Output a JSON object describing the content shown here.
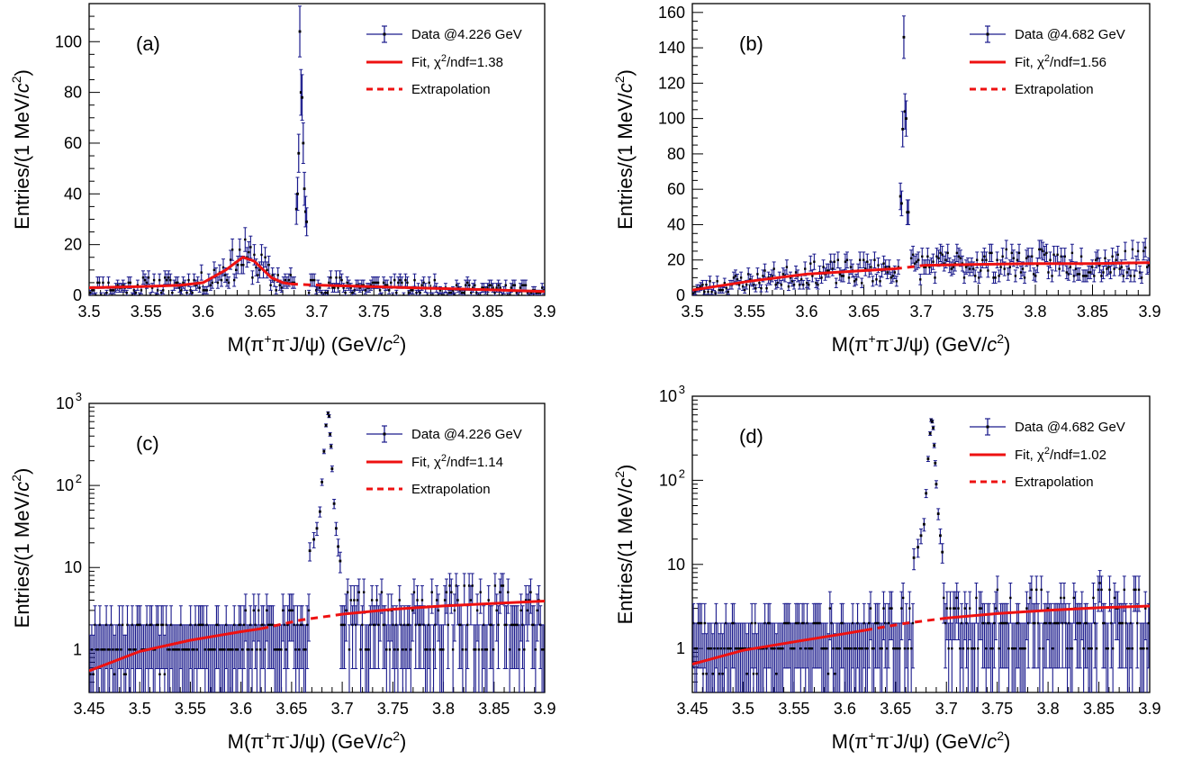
{
  "colors": {
    "data": "#1a1a8c",
    "fit": "#ee1111",
    "axis": "#000000"
  },
  "legend_symbols": {
    "chi2": "χ",
    "sup2": "2"
  },
  "chart_data": [
    {
      "type": "scatter",
      "panel_label": "(a)",
      "scale": "linear",
      "xlim": [
        3.5,
        3.9
      ],
      "ylim": [
        0,
        115
      ],
      "xticks": [
        "3.5",
        "3.55",
        "3.6",
        "3.65",
        "3.7",
        "3.75",
        "3.8",
        "3.85",
        "3.9"
      ],
      "yticks": [
        "0",
        "20",
        "40",
        "60",
        "80",
        "100"
      ],
      "ytick_values": [
        0,
        20,
        40,
        60,
        80,
        100
      ],
      "xlabel": {
        "pre": "M(",
        "pi": "π",
        "sup1": "+",
        "pi2": "π",
        "sup2": "-",
        "mid": "J/",
        "psi": "ψ",
        "post": ") (GeV/",
        "c": "c",
        "sup3": "2",
        "end": ")"
      },
      "ylabel": {
        "pre": "Entries/(1 MeV/",
        "c": "c",
        "sup": "2",
        "end": ")"
      },
      "legend": {
        "data": "Data @4.226 GeV",
        "fit_pre": "Fit, ",
        "fit_post": "/ndf=1.38",
        "extrap": "Extrapolation"
      },
      "fit": {
        "x": [
          3.5,
          3.55,
          3.58,
          3.6,
          3.62,
          3.635,
          3.645,
          3.66,
          3.67,
          3.677
        ],
        "y": [
          3,
          3.5,
          4,
          5,
          10,
          15,
          13.5,
          7,
          5,
          4.5
        ]
      },
      "extrapolation": {
        "x": [
          3.677,
          3.685,
          3.695,
          3.703
        ],
        "y": [
          4.5,
          4.3,
          4.1,
          4
        ]
      },
      "fit2": {
        "x": [
          3.703,
          3.75,
          3.8,
          3.85,
          3.9
        ],
        "y": [
          4,
          3.4,
          2.8,
          2.2,
          1.5
        ]
      },
      "peak": {
        "x": [
          3.682,
          3.683,
          3.684,
          3.685,
          3.686,
          3.687,
          3.688,
          3.689,
          3.69,
          3.691
        ],
        "y": [
          34,
          40,
          56,
          104,
          80,
          78,
          60,
          42,
          33,
          29
        ],
        "err": [
          6,
          6.5,
          7.5,
          10,
          9,
          9,
          8,
          6.5,
          6,
          5.5
        ]
      },
      "noise": {
        "seed": 11,
        "step": 0.0016,
        "err_scale": 1.0
      }
    },
    {
      "type": "scatter",
      "panel_label": "(b)",
      "scale": "linear",
      "xlim": [
        3.5,
        3.9
      ],
      "ylim": [
        0,
        165
      ],
      "xticks": [
        "3.5",
        "3.55",
        "3.6",
        "3.65",
        "3.7",
        "3.75",
        "3.8",
        "3.85",
        "3.9"
      ],
      "yticks": [
        "0",
        "20",
        "40",
        "60",
        "80",
        "100",
        "120",
        "140",
        "160"
      ],
      "ytick_values": [
        0,
        20,
        40,
        60,
        80,
        100,
        120,
        140,
        160
      ],
      "xlabel": {
        "pre": "M(",
        "pi": "π",
        "sup1": "+",
        "pi2": "π",
        "sup2": "-",
        "mid": "J/",
        "psi": "ψ",
        "post": ") (GeV/",
        "c": "c",
        "sup3": "2",
        "end": ")"
      },
      "ylabel": {
        "pre": "Entries/(1 MeV/",
        "c": "c",
        "sup": "2",
        "end": ")"
      },
      "legend": {
        "data": "Data @4.682 GeV",
        "fit_pre": "Fit, ",
        "fit_post": "/ndf=1.56",
        "extrap": "Extrapolation"
      },
      "fit": {
        "x": [
          3.5,
          3.55,
          3.6,
          3.65,
          3.677
        ],
        "y": [
          3,
          8,
          12,
          14,
          15
        ]
      },
      "extrapolation": {
        "x": [
          3.677,
          3.69,
          3.703
        ],
        "y": [
          15,
          16,
          17
        ]
      },
      "fit2": {
        "x": [
          3.703,
          3.75,
          3.8,
          3.85,
          3.9
        ],
        "y": [
          17,
          17.5,
          18,
          18,
          18.5
        ]
      },
      "peak": {
        "x": [
          3.682,
          3.683,
          3.684,
          3.685,
          3.686,
          3.687,
          3.688,
          3.689
        ],
        "y": [
          56,
          52,
          94,
          146,
          104,
          100,
          47,
          47
        ],
        "err": [
          7.5,
          7,
          10,
          12,
          10,
          10,
          7,
          7
        ]
      },
      "noise": {
        "seed": 23,
        "step": 0.0016,
        "err_scale": 1.0
      }
    },
    {
      "type": "scatter",
      "panel_label": "(c)",
      "scale": "log",
      "xlim": [
        3.45,
        3.9
      ],
      "ylim": [
        0.3,
        1000
      ],
      "xticks": [
        "3.45",
        "3.5",
        "3.55",
        "3.6",
        "3.65",
        "3.7",
        "3.75",
        "3.8",
        "3.85",
        "3.9"
      ],
      "yticks": [
        "1",
        "10",
        "10",
        "10"
      ],
      "ytick_values": [
        1,
        10,
        100,
        1000
      ],
      "ytick_exps": [
        "",
        "",
        "2",
        "3"
      ],
      "xlabel": {
        "pre": "M(",
        "pi": "π",
        "sup1": "+",
        "pi2": "π",
        "sup2": "-",
        "mid": "J/",
        "psi": "ψ",
        "post": ") (GeV/",
        "c": "c",
        "sup3": "2",
        "end": ")"
      },
      "ylabel": {
        "pre": "Entries/(1 MeV/",
        "c": "c",
        "sup": "2",
        "end": ")"
      },
      "legend": {
        "data": "Data @4.226 GeV",
        "fit_pre": "Fit, ",
        "fit_post": "/ndf=1.14",
        "extrap": "Extrapolation"
      },
      "fit": {
        "x": [
          3.45,
          3.5,
          3.55,
          3.6,
          3.62
        ],
        "y": [
          0.55,
          0.95,
          1.3,
          1.65,
          1.8
        ]
      },
      "extrapolation": {
        "x": [
          3.62,
          3.66,
          3.7
        ],
        "y": [
          1.8,
          2.3,
          2.7
        ]
      },
      "fit2": {
        "x": [
          3.7,
          3.75,
          3.8,
          3.85,
          3.9
        ],
        "y": [
          2.7,
          3.1,
          3.4,
          3.65,
          3.9
        ]
      },
      "peak": {
        "x": [
          3.668,
          3.672,
          3.675,
          3.678,
          3.68,
          3.682,
          3.684,
          3.686,
          3.687,
          3.688,
          3.689,
          3.69,
          3.692,
          3.694,
          3.696,
          3.698
        ],
        "y": [
          16,
          22,
          30,
          48,
          110,
          260,
          540,
          760,
          700,
          420,
          300,
          160,
          60,
          30,
          18,
          12
        ],
        "err": [
          0.25,
          0.21,
          0.18,
          0.14,
          0.09,
          0.06,
          0.04,
          0.04,
          0.04,
          0.05,
          0.06,
          0.08,
          0.13,
          0.18,
          0.23,
          0.28
        ]
      },
      "noise": {
        "seed": 37,
        "step": 0.0016,
        "err_scale": 1.0
      }
    },
    {
      "type": "scatter",
      "panel_label": "(d)",
      "scale": "log",
      "xlim": [
        3.45,
        3.9
      ],
      "ylim": [
        0.3,
        1000
      ],
      "xticks": [
        "3.45",
        "3.5",
        "3.55",
        "3.6",
        "3.65",
        "3.7",
        "3.75",
        "3.8",
        "3.85",
        "3.9"
      ],
      "yticks": [
        "1",
        "10",
        "10",
        "10"
      ],
      "ytick_values": [
        1,
        10,
        100,
        1000
      ],
      "ytick_exps": [
        "",
        "",
        "2",
        "3"
      ],
      "xlabel": {
        "pre": "M(",
        "pi": "π",
        "sup1": "+",
        "pi2": "π",
        "sup2": "-",
        "mid": "J/",
        "psi": "ψ",
        "post": ") (GeV/",
        "c": "c",
        "sup3": "2",
        "end": ")"
      },
      "ylabel": {
        "pre": "Entries/(1 MeV/",
        "c": "c",
        "sup": "2",
        "end": ")"
      },
      "legend": {
        "data": "Data @4.682 GeV",
        "fit_pre": "Fit, ",
        "fit_post": "/ndf=1.02",
        "extrap": "Extrapolation"
      },
      "fit": {
        "x": [
          3.45,
          3.5,
          3.55,
          3.6,
          3.62
        ],
        "y": [
          0.65,
          0.95,
          1.2,
          1.5,
          1.65
        ]
      },
      "extrapolation": {
        "x": [
          3.62,
          3.66,
          3.7
        ],
        "y": [
          1.65,
          2.0,
          2.3
        ]
      },
      "fit2": {
        "x": [
          3.7,
          3.75,
          3.8,
          3.85,
          3.9
        ],
        "y": [
          2.3,
          2.6,
          2.85,
          3.05,
          3.2
        ]
      },
      "peak": {
        "x": [
          3.668,
          3.672,
          3.675,
          3.678,
          3.68,
          3.682,
          3.684,
          3.685,
          3.686,
          3.687,
          3.688,
          3.689,
          3.69,
          3.692,
          3.694,
          3.696
        ],
        "y": [
          12,
          16,
          22,
          30,
          70,
          180,
          360,
          520,
          500,
          420,
          260,
          160,
          90,
          40,
          22,
          14
        ],
        "err": [
          0.28,
          0.24,
          0.2,
          0.17,
          0.11,
          0.07,
          0.05,
          0.04,
          0.04,
          0.05,
          0.06,
          0.07,
          0.1,
          0.15,
          0.2,
          0.26
        ]
      },
      "noise": {
        "seed": 53,
        "step": 0.0016,
        "err_scale": 1.0
      }
    }
  ]
}
